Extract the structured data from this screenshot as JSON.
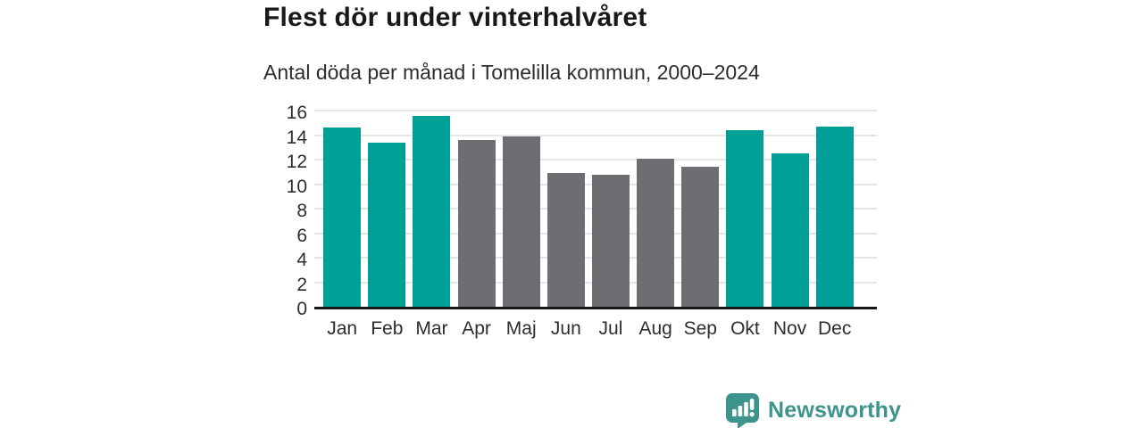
{
  "header": {
    "title": "Flest dör under vinterhalvåret",
    "subtitle": "Antal döda per månad i Tomelilla kommun, 2000–2024"
  },
  "chart_data": {
    "type": "bar",
    "title": "Flest dör under vinterhalvåret",
    "subtitle": "Antal döda per månad i Tomelilla kommun, 2000–2024",
    "categories": [
      "Jan",
      "Feb",
      "Mar",
      "Apr",
      "Maj",
      "Jun",
      "Jul",
      "Aug",
      "Sep",
      "Okt",
      "Nov",
      "Dec"
    ],
    "values": [
      14.6,
      13.4,
      15.6,
      13.6,
      13.9,
      10.9,
      10.8,
      12.1,
      11.4,
      14.4,
      12.5,
      14.7
    ],
    "groups": [
      "winter",
      "winter",
      "winter",
      "summer",
      "summer",
      "summer",
      "summer",
      "summer",
      "summer",
      "winter",
      "winter",
      "winter"
    ],
    "colors": {
      "winter": "#00A096",
      "summer": "#6E6E72"
    },
    "xlabel": "",
    "ylabel": "",
    "ylim": [
      0,
      16
    ],
    "yticks": [
      0,
      2,
      4,
      6,
      8,
      10,
      12,
      14,
      16
    ],
    "grid": true,
    "legend": false,
    "axis_color": "#191919",
    "grid_color": "#E5E5E5"
  },
  "footer": {
    "brand": "Newsworthy",
    "brand_color": "#3D948D",
    "logo_icon": "bar-chart-speech-bubble-icon"
  }
}
